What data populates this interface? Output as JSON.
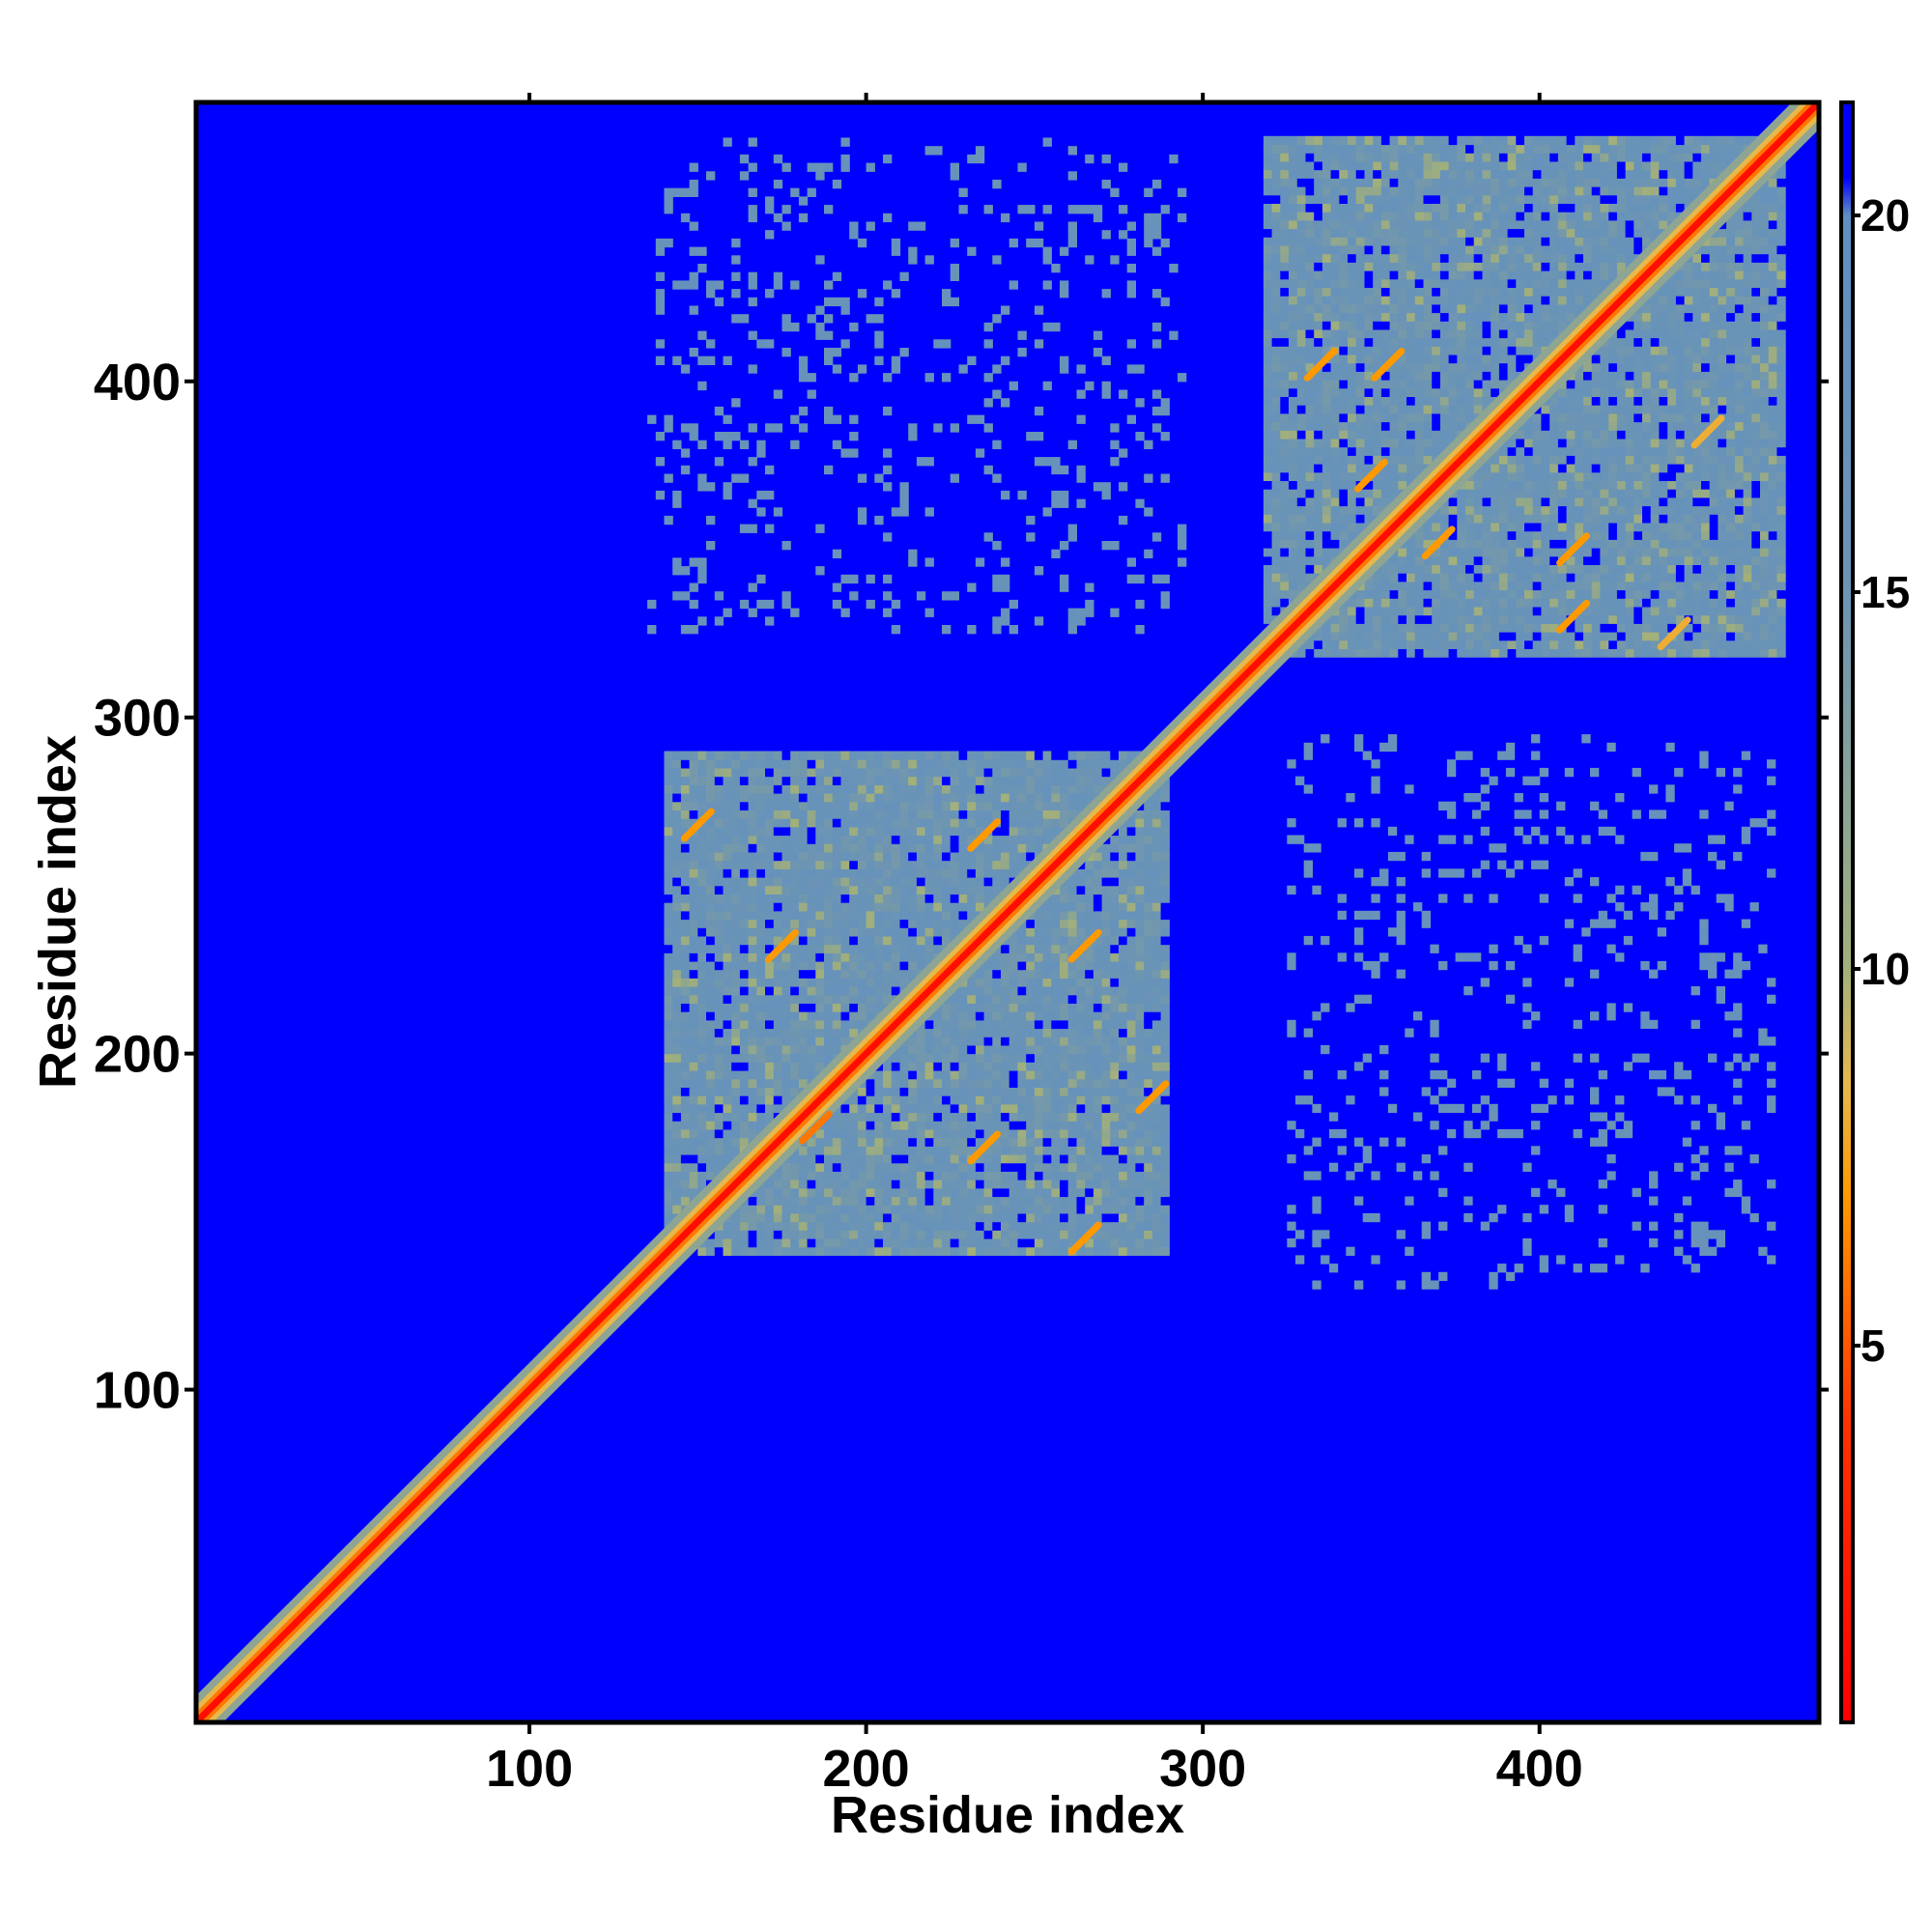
{
  "chart_data": {
    "type": "heatmap",
    "title": "",
    "xlabel": "Residue index",
    "ylabel": "Residue index",
    "xlim": [
      1,
      483
    ],
    "ylim": [
      1,
      483
    ],
    "x_ticks": [
      100,
      200,
      300,
      400
    ],
    "y_ticks": [
      100,
      200,
      300,
      400
    ],
    "grid": false,
    "legend": "colorbar-right",
    "colorbar": {
      "range": [
        0,
        21.5
      ],
      "ticks": [
        5,
        10,
        15,
        20
      ],
      "stops": [
        {
          "value": 0,
          "color": "#ff0000"
        },
        {
          "value": 4,
          "color": "#ff3300"
        },
        {
          "value": 7,
          "color": "#ff9900"
        },
        {
          "value": 8.5,
          "color": "#e6b84d"
        },
        {
          "value": 10,
          "color": "#a3b07a"
        },
        {
          "value": 15,
          "color": "#6b94b5"
        },
        {
          "value": 20,
          "color": "#5f8fc4"
        },
        {
          "value": 20.5,
          "color": "#0000ff"
        },
        {
          "value": 21.5,
          "color": "#0000ff"
        }
      ]
    },
    "background_value": 21,
    "domain_blocks": [
      {
        "residues": [
          140,
          290
        ],
        "mean_distance": 15.5
      },
      {
        "residues": [
          318,
          472
        ],
        "mean_distance": 15.5
      }
    ],
    "inter_domain_regions": [
      {
        "x": [
          135,
          295
        ],
        "y": [
          325,
          472
        ],
        "mean_distance": 16.5
      },
      {
        "x": [
          325,
          470
        ],
        "y": [
          130,
          295
        ],
        "mean_distance": 16.5
      }
    ],
    "off_diagonal_contacts": [
      {
        "x": 265,
        "y": 145,
        "value": 7
      },
      {
        "x": 235,
        "y": 172,
        "value": 7
      },
      {
        "x": 265,
        "y": 232,
        "value": 7
      },
      {
        "x": 175,
        "y": 232,
        "value": 7
      },
      {
        "x": 150,
        "y": 268,
        "value": 7
      },
      {
        "x": 235,
        "y": 265,
        "value": 7
      },
      {
        "x": 285,
        "y": 187,
        "value": 7
      },
      {
        "x": 185,
        "y": 178,
        "value": 6
      },
      {
        "x": 350,
        "y": 372,
        "value": 7
      },
      {
        "x": 370,
        "y": 352,
        "value": 7
      },
      {
        "x": 410,
        "y": 350,
        "value": 7
      },
      {
        "x": 410,
        "y": 330,
        "value": 7
      },
      {
        "x": 335,
        "y": 405,
        "value": 7
      },
      {
        "x": 355,
        "y": 405,
        "value": 7
      },
      {
        "x": 440,
        "y": 325,
        "value": 8
      },
      {
        "x": 450,
        "y": 385,
        "value": 8
      }
    ]
  }
}
